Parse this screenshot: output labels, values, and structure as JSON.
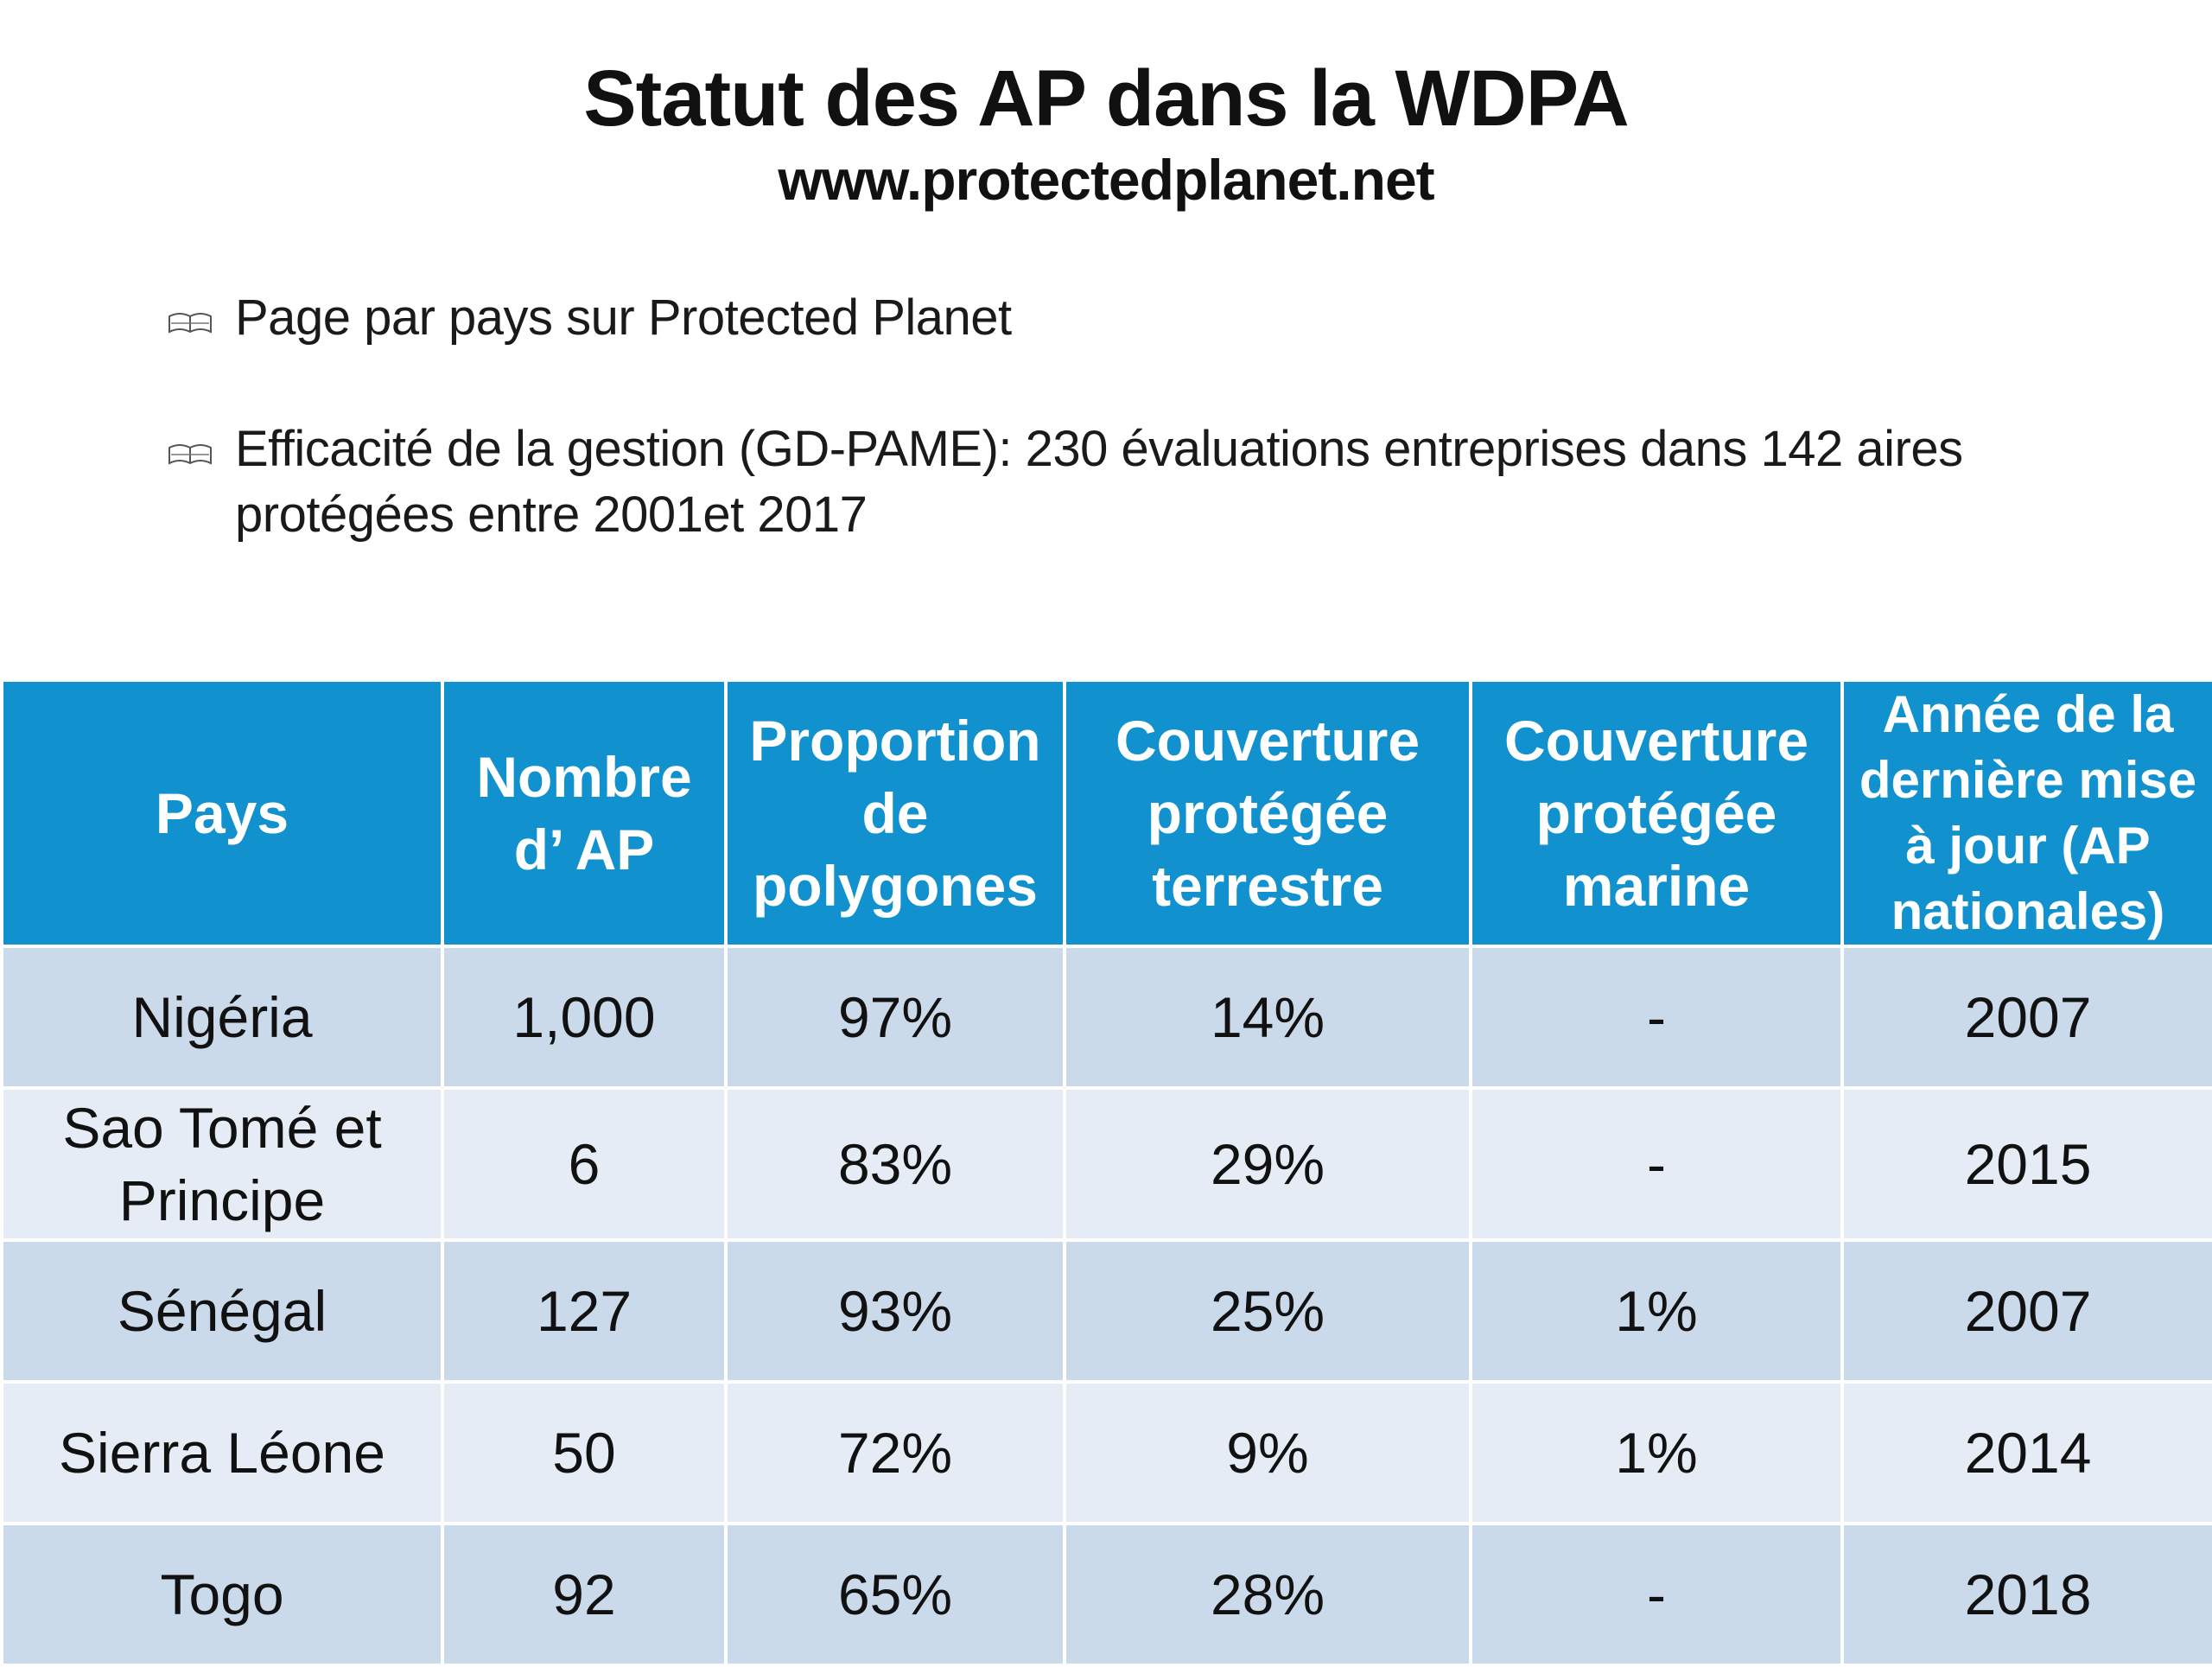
{
  "slide": {
    "title": "Statut des AP dans la WDPA",
    "subtitle": "www.protectedplanet.net",
    "bullets": [
      {
        "icon": "open-book-icon",
        "text": "Page par pays sur Protected Planet"
      },
      {
        "icon": "open-book-icon",
        "text": "Efficacité de la gestion (GD-PAME): 230 évaluations entreprises dans 142 aires protégées entre 2001et 2017"
      }
    ]
  },
  "table": {
    "header_color": "#1191cd",
    "row_colors": [
      "#cbdaeb",
      "#e6ecf5"
    ],
    "columns": [
      "Pays",
      "Nombre d’ AP",
      "Proportion de polygones",
      "Couverture protégée terrestre",
      "Couverture protégée marine",
      "Année de la dernière mise à jour (AP nationales)"
    ],
    "rows": [
      [
        "Nigéria",
        "1,000",
        "97%",
        "14%",
        "-",
        "2007"
      ],
      [
        "Sao Tomé et Principe",
        "6",
        "83%",
        "29%",
        "-",
        "2015"
      ],
      [
        "Sénégal",
        "127",
        "93%",
        "25%",
        "1%",
        "2007"
      ],
      [
        "Sierra Léone",
        "50",
        "72%",
        "9%",
        "1%",
        "2014"
      ],
      [
        "Togo",
        "92",
        "65%",
        "28%",
        "-",
        "2018"
      ]
    ]
  }
}
